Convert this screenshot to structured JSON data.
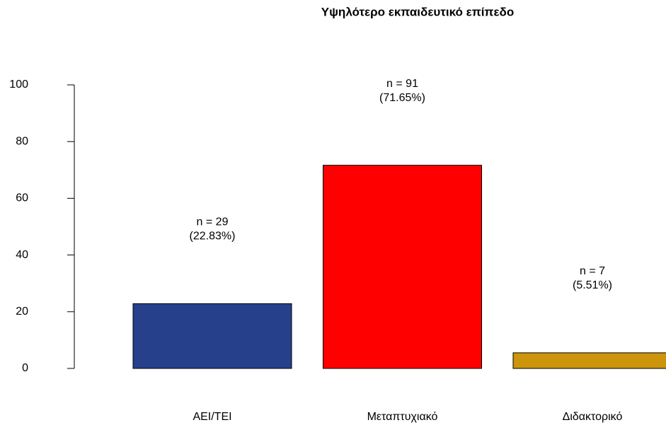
{
  "chart_data": {
    "type": "bar",
    "title": "Υψηλότερο εκπαιδευτικό επίπεδο",
    "categories": [
      "ΑΕΙ/ΤΕΙ",
      "Μεταπτυχιακό",
      "Διδακτορικό"
    ],
    "values": [
      22.83,
      71.65,
      5.51
    ],
    "value_labels": [
      "(22.83%)",
      "(71.65%)",
      "(5.51%)"
    ],
    "counts": [
      29,
      91,
      7
    ],
    "count_labels": [
      "n = 29",
      "n = 91",
      "n = 7"
    ],
    "colors": [
      "#27408B",
      "#FF0000",
      "#CD950C"
    ],
    "ylim": [
      0,
      100
    ],
    "yticks": [
      0,
      20,
      40,
      60,
      80,
      100
    ],
    "grid": false
  }
}
